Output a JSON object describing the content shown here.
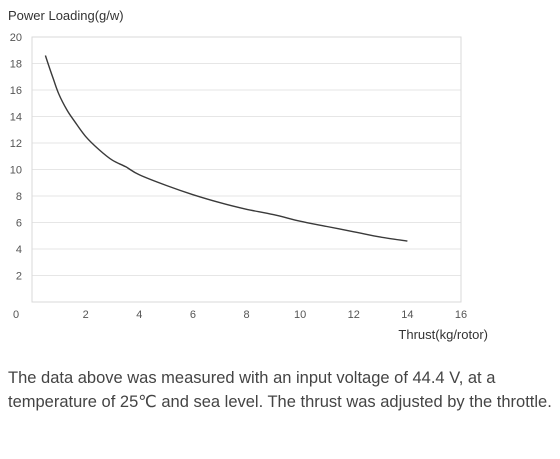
{
  "chart_data": {
    "type": "line",
    "ylabel": "Power Loading(g/w)",
    "xlabel": "Thrust(kg/rotor)",
    "xlim": [
      0,
      16
    ],
    "ylim": [
      0,
      20
    ],
    "x_ticks": [
      0,
      2,
      4,
      6,
      8,
      10,
      12,
      14,
      16
    ],
    "y_ticks": [
      2,
      4,
      6,
      8,
      10,
      12,
      14,
      16,
      18,
      20
    ],
    "grid": "horizontal",
    "line_color": "#3a3a3a",
    "series": [
      {
        "x": [
          0.5,
          0.8,
          1.0,
          1.3,
          1.6,
          2.0,
          2.5,
          3.0,
          3.5,
          4.0,
          5.0,
          6.0,
          7.0,
          8.0,
          9.0,
          10.0,
          11.0,
          12.0,
          13.0,
          14.0
        ],
        "y": [
          18.6,
          16.8,
          15.7,
          14.5,
          13.6,
          12.5,
          11.5,
          10.7,
          10.2,
          9.6,
          8.8,
          8.1,
          7.5,
          7.0,
          6.6,
          6.1,
          5.7,
          5.3,
          4.9,
          4.6
        ]
      }
    ]
  },
  "caption": "The data above was measured with an input voltage of 44.4 V, at a temperature of 25℃ and sea level. The thrust was adjusted by the throttle."
}
